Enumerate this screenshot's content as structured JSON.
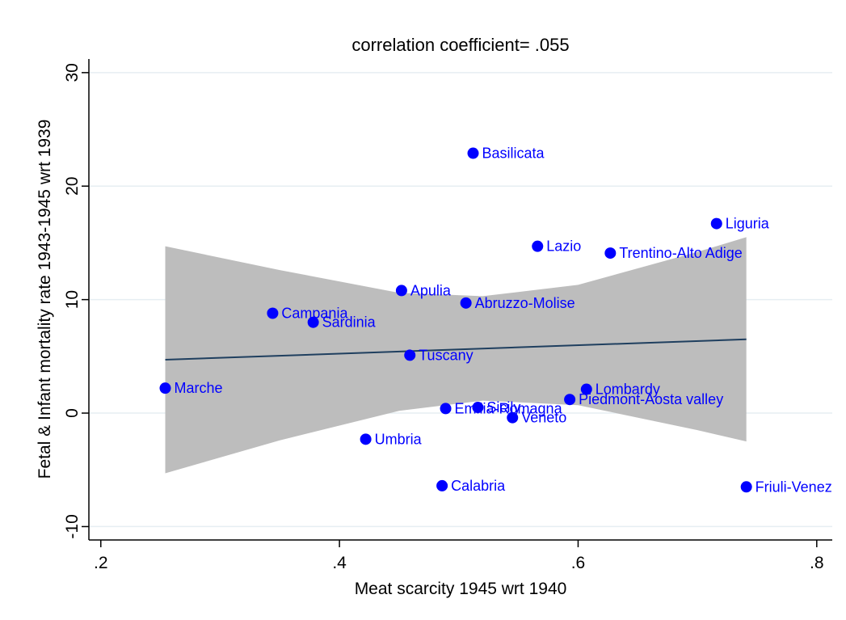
{
  "chart_data": {
    "type": "scatter",
    "title": "correlation coefficient= .055",
    "x_label": "Meat scarcity 1945 wrt 1940",
    "y_label": "Fetal & Infant mortality rate 1943-1945 wrt 1939",
    "xlim": [
      0.19,
      0.813
    ],
    "ylim": [
      -11.18,
      31.2
    ],
    "xticks": [
      {
        "value": 0.2,
        "label": ".2"
      },
      {
        "value": 0.4,
        "label": ".4"
      },
      {
        "value": 0.6,
        "label": ".6"
      },
      {
        "value": 0.8,
        "label": ".8"
      }
    ],
    "yticks": [
      -10,
      0,
      10,
      20,
      30
    ],
    "grid": true,
    "points": {
      "color": "#0000ff",
      "labels": [
        "Basilicata",
        "Liguria",
        "Lazio",
        "Trentino-Alto Adige",
        "Apulia",
        "Abruzzo-Molise",
        "Campania",
        "Sardinia",
        "Tuscany",
        "Marche",
        "Lombardy",
        "Piedmont-Aosta valley",
        "Emilia-Romagna",
        "Sicily",
        "Veneto",
        "Umbria",
        "Calabria",
        "Friuli-Venez"
      ],
      "x": [
        0.512,
        0.716,
        0.566,
        0.627,
        0.452,
        0.506,
        0.344,
        0.378,
        0.459,
        0.254,
        0.607,
        0.593,
        0.489,
        0.516,
        0.545,
        0.422,
        0.486,
        0.741
      ],
      "y": [
        22.9,
        16.7,
        14.7,
        14.1,
        10.8,
        9.7,
        8.8,
        8.0,
        5.1,
        2.2,
        2.1,
        1.2,
        0.4,
        0.5,
        -0.4,
        -2.3,
        -6.4,
        -6.5
      ]
    },
    "fit_line": {
      "color": "#1f3f5f",
      "x": [
        0.254,
        0.741
      ],
      "y": [
        4.7,
        6.5
      ]
    },
    "confidence_band": {
      "color": "#bdbdbd",
      "x": [
        0.254,
        0.35,
        0.45,
        0.52,
        0.6,
        0.7,
        0.741
      ],
      "upper": [
        14.7,
        12.6,
        10.6,
        10.3,
        11.3,
        14.2,
        15.5
      ],
      "lower": [
        -5.3,
        -2.4,
        0.2,
        1.1,
        0.7,
        -1.5,
        -2.5
      ]
    }
  }
}
